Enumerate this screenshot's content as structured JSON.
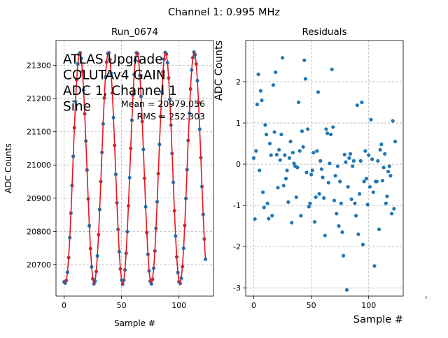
{
  "figure": {
    "suptitle": "Channel 1: 0.995 MHz"
  },
  "chart_data": [
    {
      "type": "line",
      "title": "Run_0674",
      "xlabel": "Sample #",
      "ylabel": "ADC Counts",
      "xlim": [
        -7,
        130
      ],
      "ylim": [
        20605,
        21375
      ],
      "xticks": [
        0,
        50,
        100
      ],
      "yticks": [
        20700,
        20800,
        20900,
        21000,
        21100,
        21200,
        21300
      ],
      "grid": true,
      "annotation_lines": [
        "ATLAS Upgrade",
        "COLUTAv4 GAIN",
        "ADC 1, Channel 1",
        "Sine"
      ],
      "stats_lines": [
        "Mean = 20979.056",
        "RMS = 252.303"
      ],
      "series": [
        {
          "kind": "points",
          "color": "#1f77b4",
          "x": [
            0,
            1,
            2,
            3,
            4,
            5,
            6,
            7,
            8,
            9,
            10,
            11,
            12,
            13,
            14,
            15,
            16,
            17,
            18,
            19,
            20,
            21,
            22,
            23,
            24,
            25,
            26,
            27,
            28,
            29,
            30,
            31,
            32,
            33,
            34,
            35,
            36,
            37,
            38,
            39,
            40,
            41,
            42,
            43,
            44,
            45,
            46,
            47,
            48,
            49,
            50,
            51,
            52,
            53,
            54,
            55,
            56,
            57,
            58,
            59,
            60,
            61,
            62,
            63,
            64,
            65,
            66,
            67,
            68,
            69,
            70,
            71,
            72,
            73,
            74,
            75,
            76,
            77,
            78,
            79,
            80,
            81,
            82,
            83,
            84,
            85,
            86,
            87,
            88,
            89,
            90,
            91,
            92,
            93,
            94,
            95,
            96,
            97,
            98,
            99,
            100,
            101,
            102,
            103,
            104,
            105,
            106,
            107,
            108,
            109,
            110,
            111,
            112,
            113,
            114,
            115,
            116,
            117,
            118,
            119,
            120,
            121,
            122,
            123
          ],
          "y": [
            20648,
            20644,
            20652,
            20677,
            20721,
            20781,
            20855,
            20938,
            21026,
            21112,
            21191,
            21257,
            21305,
            21333,
            21338,
            21321,
            21283,
            21226,
            21154,
            21072,
            20985,
            20898,
            20817,
            20748,
            20693,
            20657,
            20642,
            20650,
            20679,
            20726,
            20790,
            20866,
            20950,
            21038,
            21124,
            21202,
            21265,
            21310,
            21336,
            21338,
            21317,
            21276,
            21217,
            21143,
            21059,
            20972,
            20886,
            20806,
            20739,
            20687,
            20653,
            20641,
            20653,
            20684,
            20734,
            20799,
            20877,
            20962,
            21050,
            21135,
            21211,
            21273,
            21315,
            21338,
            21336,
            21313,
            21269,
            21207,
            21131,
            21047,
            20960,
            20874,
            20796,
            20731,
            20681,
            20650,
            20642,
            20656,
            20689,
            20741,
            20809,
            20889,
            20974,
            21062,
            21146,
            21220,
            21280,
            21319,
            21339,
            21334,
            21308,
            21262,
            21198,
            21120,
            21035,
            20948,
            20862,
            20786,
            20723,
            20676,
            20648,
            20643,
            20659,
            20694,
            20749,
            20818,
            20899,
            20986,
            21074,
            21156,
            21229,
            21286,
            21323,
            21340,
            21332,
            21304,
            21254,
            21188,
            21108,
            21022,
            20935,
            20851,
            20777,
            20716
          ]
        },
        {
          "kind": "line",
          "color": "#e8141c",
          "x": [
            0,
            1,
            2,
            3,
            4,
            5,
            6,
            7,
            8,
            9,
            10,
            11,
            12,
            13,
            14,
            15,
            16,
            17,
            18,
            19,
            20,
            21,
            22,
            23,
            24,
            25,
            26,
            27,
            28,
            29,
            30,
            31,
            32,
            33,
            34,
            35,
            36,
            37,
            38,
            39,
            40,
            41,
            42,
            43,
            44,
            45,
            46,
            47,
            48,
            49,
            50,
            51,
            52,
            53,
            54,
            55,
            56,
            57,
            58,
            59,
            60,
            61,
            62,
            63,
            64,
            65,
            66,
            67,
            68,
            69,
            70,
            71,
            72,
            73,
            74,
            75,
            76,
            77,
            78,
            79,
            80,
            81,
            82,
            83,
            84,
            85,
            86,
            87,
            88,
            89,
            90,
            91,
            92,
            93,
            94,
            95,
            96,
            97,
            98,
            99,
            100,
            101,
            102,
            103,
            104,
            105,
            106,
            107,
            108,
            109,
            110,
            111,
            112,
            113,
            114,
            115,
            116,
            117,
            118,
            119,
            120,
            121,
            122,
            123
          ],
          "y": [
            20648,
            20644,
            20652,
            20677,
            20721,
            20781,
            20855,
            20938,
            21026,
            21112,
            21191,
            21257,
            21305,
            21333,
            21338,
            21321,
            21283,
            21226,
            21154,
            21072,
            20985,
            20898,
            20817,
            20748,
            20693,
            20657,
            20642,
            20650,
            20679,
            20726,
            20790,
            20866,
            20950,
            21038,
            21124,
            21202,
            21265,
            21310,
            21336,
            21338,
            21317,
            21276,
            21217,
            21143,
            21059,
            20972,
            20886,
            20806,
            20739,
            20687,
            20653,
            20641,
            20653,
            20684,
            20734,
            20799,
            20877,
            20962,
            21050,
            21135,
            21211,
            21273,
            21315,
            21338,
            21336,
            21313,
            21269,
            21207,
            21131,
            21047,
            20960,
            20874,
            20796,
            20731,
            20681,
            20650,
            20642,
            20656,
            20689,
            20741,
            20809,
            20889,
            20974,
            21062,
            21146,
            21220,
            21280,
            21319,
            21339,
            21334,
            21308,
            21262,
            21198,
            21120,
            21035,
            20948,
            20862,
            20786,
            20723,
            20676,
            20648,
            20643,
            20659,
            20694,
            20749,
            20818,
            20899,
            20986,
            21074,
            21156,
            21229,
            21286,
            21323,
            21340,
            21332,
            21304,
            21254,
            21188,
            21108,
            21022,
            20935,
            20851,
            20777,
            20716
          ]
        }
      ]
    },
    {
      "type": "scatter",
      "title": "Residuals",
      "xlabel": "Sample #",
      "ylabel": "ADC Counts",
      "xlim": [
        -7,
        130
      ],
      "ylim": [
        -3.2,
        3.0
      ],
      "xticks": [
        0,
        50,
        100
      ],
      "yticks": [
        -3,
        -2,
        -1,
        0,
        1,
        2
      ],
      "grid": true,
      "series": [
        {
          "color": "#1f77b4",
          "x": [
            0,
            1,
            2,
            3,
            4,
            5,
            6,
            7,
            8,
            9,
            10,
            11,
            12,
            13,
            14,
            15,
            16,
            17,
            18,
            19,
            20,
            21,
            22,
            23,
            24,
            25,
            26,
            27,
            28,
            29,
            30,
            31,
            32,
            33,
            34,
            35,
            36,
            37,
            38,
            39,
            40,
            41,
            42,
            43,
            44,
            45,
            46,
            47,
            48,
            49,
            50,
            51,
            52,
            53,
            54,
            55,
            56,
            57,
            58,
            59,
            60,
            61,
            62,
            63,
            64,
            65,
            66,
            67,
            68,
            69,
            70,
            71,
            72,
            73,
            74,
            75,
            76,
            77,
            78,
            79,
            80,
            81,
            82,
            83,
            84,
            85,
            86,
            87,
            88,
            89,
            90,
            91,
            92,
            93,
            94,
            95,
            96,
            97,
            98,
            99,
            100,
            101,
            102,
            103,
            104,
            105,
            106,
            107,
            108,
            109,
            110,
            111,
            112,
            113,
            114,
            115,
            116,
            117,
            118,
            119,
            120,
            121,
            122,
            123
          ],
          "y": [
            0.15,
            -1.33,
            0.32,
            1.45,
            2.18,
            -0.15,
            1.78,
            1.55,
            -0.68,
            -1.05,
            0.95,
            0.72,
            -0.95,
            -1.32,
            0.5,
            0.22,
            -1.25,
            1.92,
            0.78,
            2.23,
            0.23,
            -0.57,
            0.35,
            0.1,
            0.72,
            2.58,
            -0.52,
            0.22,
            -0.35,
            -0.15,
            -0.92,
            0.15,
            0.55,
            -1.42,
            0.28,
            0.02,
            -0.05,
            -0.8,
            -0.08,
            1.5,
            0.32,
            -1.25,
            0.8,
            0.42,
            2.52,
            2.07,
            -0.2,
            0.85,
            -1.03,
            -0.95,
            -0.25,
            -0.15,
            0.28,
            -1.4,
            -0.8,
            0.32,
            1.75,
            -0.72,
            0.08,
            -0.12,
            -0.32,
            -0.82,
            -1.73,
            0.85,
            0.75,
            -0.45,
            0.02,
            0.72,
            2.3,
            0.9,
            -0.88,
            -0.28,
            -1.2,
            -0.05,
            -1.5,
            -0.42,
            -0.95,
            -1.65,
            -2.22,
            0.23,
            0.05,
            -3.05,
            -0.55,
            0.15,
            0.25,
            -0.85,
            -0.05,
            0.08,
            -0.95,
            -1.25,
            1.43,
            -1.7,
            -0.72,
            0.08,
            1.5,
            -1.95,
            -0.42,
            0.32,
            -0.35,
            -0.98,
            0.22,
            -0.55,
            1.08,
            0.12,
            -0.68,
            -2.47,
            -0.42,
            -0.42,
            0.08,
            -1.58,
            0.35,
            0.48,
            -0.4,
            -0.08,
            0.25,
            -0.95,
            -0.78,
            -0.18,
            -0.05,
            -0.28,
            -1.2,
            1.05,
            -1.08,
            0.55
          ]
        }
      ]
    }
  ]
}
